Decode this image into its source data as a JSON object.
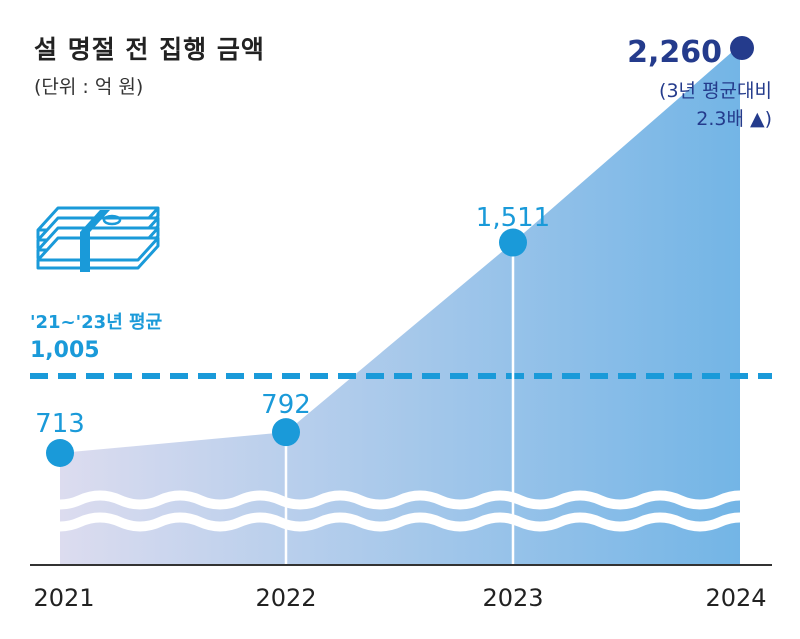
{
  "title": "설 명절 전 집행 금액",
  "unit_label": "(단위 : 억 원)",
  "average": {
    "label": "'21~'23년 평균",
    "value_label": "1,005"
  },
  "note_line1": "(3년 평균대비",
  "note_line2": "2.3배 ▲)",
  "colors": {
    "point": "#1a9ad9",
    "highlight_point": "#243b8c",
    "average_line": "#1a9ad9",
    "area_start": "#dcdcef",
    "area_end": "#73b5e6",
    "wave": "#ffffff"
  },
  "chart_data": {
    "type": "area",
    "title": "설 명절 전 집행 금액",
    "subtitle": "(단위 : 억 원)",
    "categories": [
      "2021",
      "2022",
      "2023",
      "2024"
    ],
    "values": [
      713,
      792,
      1511,
      2260
    ],
    "value_labels": [
      "713",
      "792",
      "1,511",
      "2,260"
    ],
    "reference_line": {
      "value": 1005,
      "label": "'21~'23년 평균",
      "value_label": "1,005",
      "style": "dashed"
    },
    "highlight": {
      "category": "2024",
      "annotation": [
        "(3년 평균대비",
        "2.3배 ▲)"
      ]
    },
    "axis_break": true,
    "grid": false,
    "legend": "none"
  }
}
